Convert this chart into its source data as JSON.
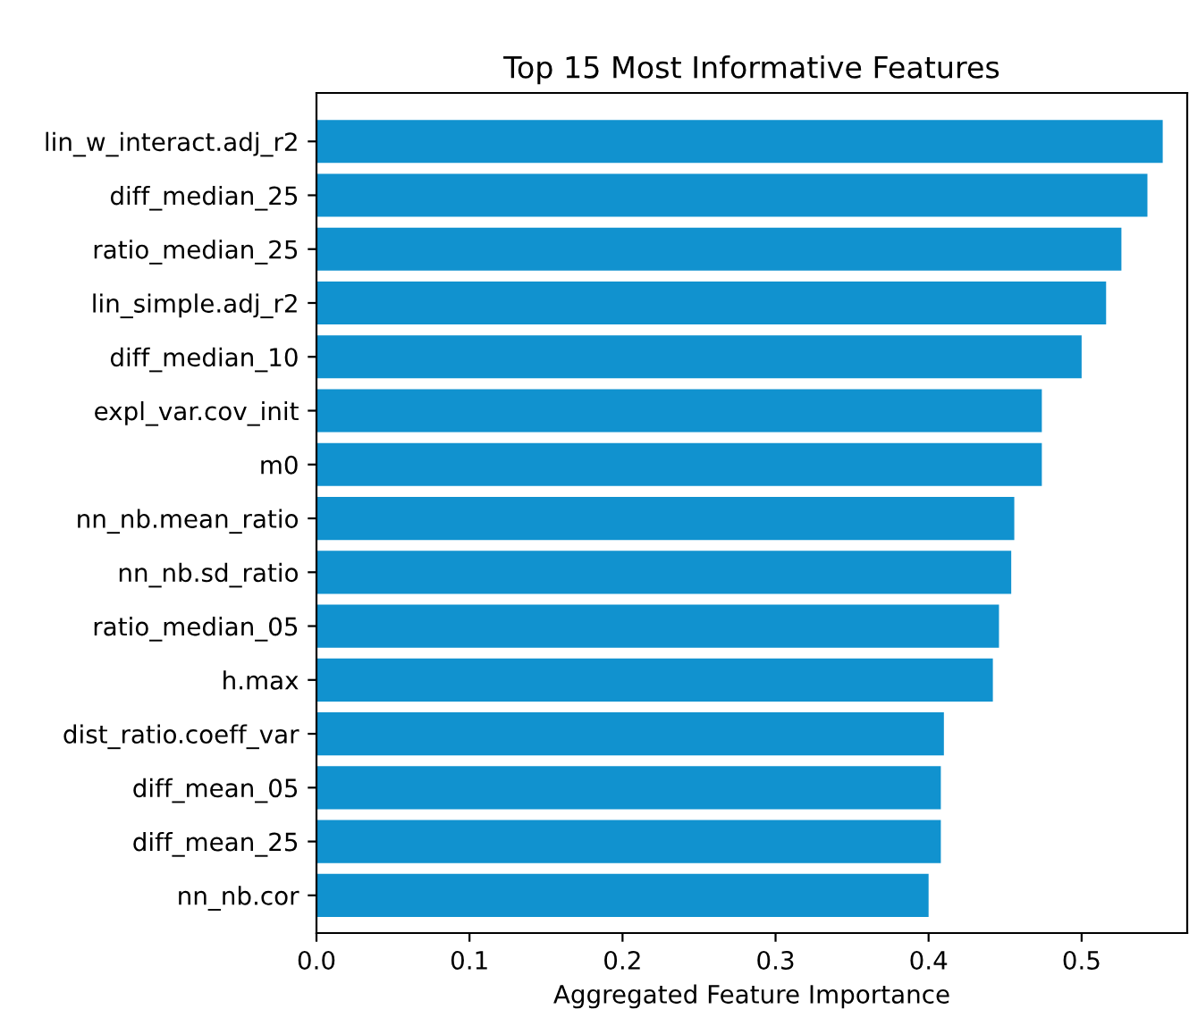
{
  "chart_data": {
    "type": "bar",
    "orientation": "horizontal",
    "title": "Top 15 Most Informative Features",
    "xlabel": "Aggregated Feature Importance",
    "categories": [
      "lin_w_interact.adj_r2",
      "diff_median_25",
      "ratio_median_25",
      "lin_simple.adj_r2",
      "diff_median_10",
      "expl_var.cov_init",
      "m0",
      "nn_nb.mean_ratio",
      "nn_nb.sd_ratio",
      "ratio_median_05",
      "h.max",
      "dist_ratio.coeff_var",
      "diff_mean_05",
      "diff_mean_25",
      "nn_nb.cor"
    ],
    "values": [
      0.553,
      0.543,
      0.526,
      0.516,
      0.5,
      0.474,
      0.474,
      0.456,
      0.454,
      0.446,
      0.442,
      0.41,
      0.408,
      0.408,
      0.4
    ],
    "color": "#1192cf",
    "xlim": [
      0,
      0.569
    ],
    "xticks": [
      {
        "value": 0,
        "label": "0.0"
      },
      0.1,
      0.2,
      0.3,
      0.4,
      0.5
    ],
    "grid": false,
    "legend": false
  }
}
